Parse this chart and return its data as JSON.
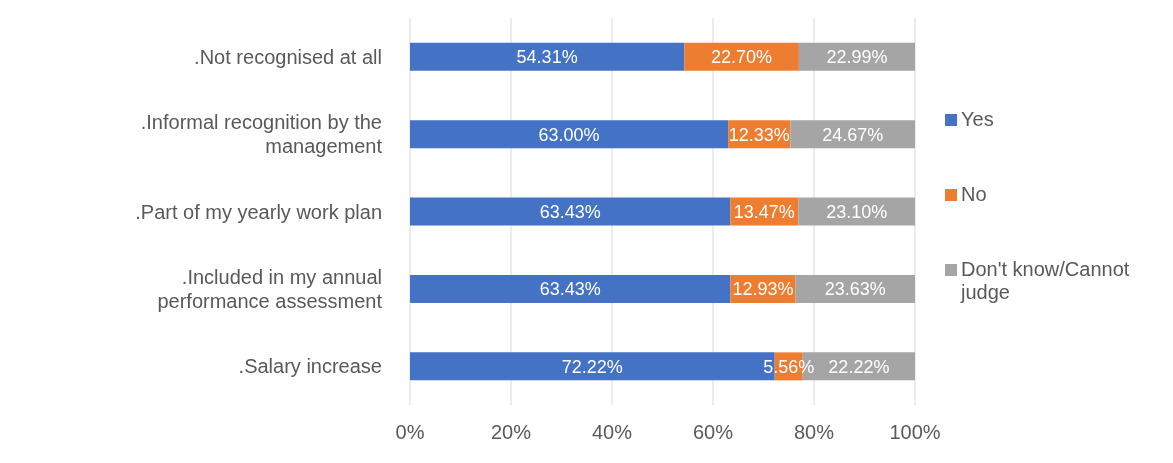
{
  "chart_data": {
    "type": "bar",
    "orientation": "horizontal",
    "stacked": true,
    "categories": [
      ".Not recognised at all",
      ".Informal recognition by the management",
      ".Part of my yearly work plan",
      ".Included in my annual performance assessment",
      ".Salary increase"
    ],
    "series": [
      {
        "name": "Yes",
        "color": "#4472c4",
        "values": [
          54.31,
          63.0,
          63.43,
          63.43,
          72.22
        ],
        "value_labels": [
          "54.31%",
          "63.00%",
          "63.43%",
          "63.43%",
          "72.22%"
        ]
      },
      {
        "name": "No",
        "color": "#ed7d31",
        "values": [
          22.7,
          12.33,
          13.47,
          12.93,
          5.56
        ],
        "value_labels": [
          "22.70%",
          "12.33%",
          "13.47%",
          "12.93%",
          "5.56%"
        ]
      },
      {
        "name": "Don't know/Cannot judge",
        "color": "#a5a5a5",
        "values": [
          22.99,
          24.67,
          23.1,
          23.63,
          22.22
        ],
        "value_labels": [
          "22.99%",
          "24.67%",
          "23.10%",
          "23.63%",
          "22.22%"
        ]
      }
    ],
    "xlim": [
      0,
      100
    ],
    "xticks": [
      {
        "value": 0,
        "label": "0%"
      },
      {
        "value": 20,
        "label": "20%"
      },
      {
        "value": 40,
        "label": "40%"
      },
      {
        "value": 60,
        "label": "60%"
      },
      {
        "value": 80,
        "label": "80%"
      },
      {
        "value": 100,
        "label": "100%"
      }
    ],
    "grid": "x",
    "legend": "right"
  }
}
